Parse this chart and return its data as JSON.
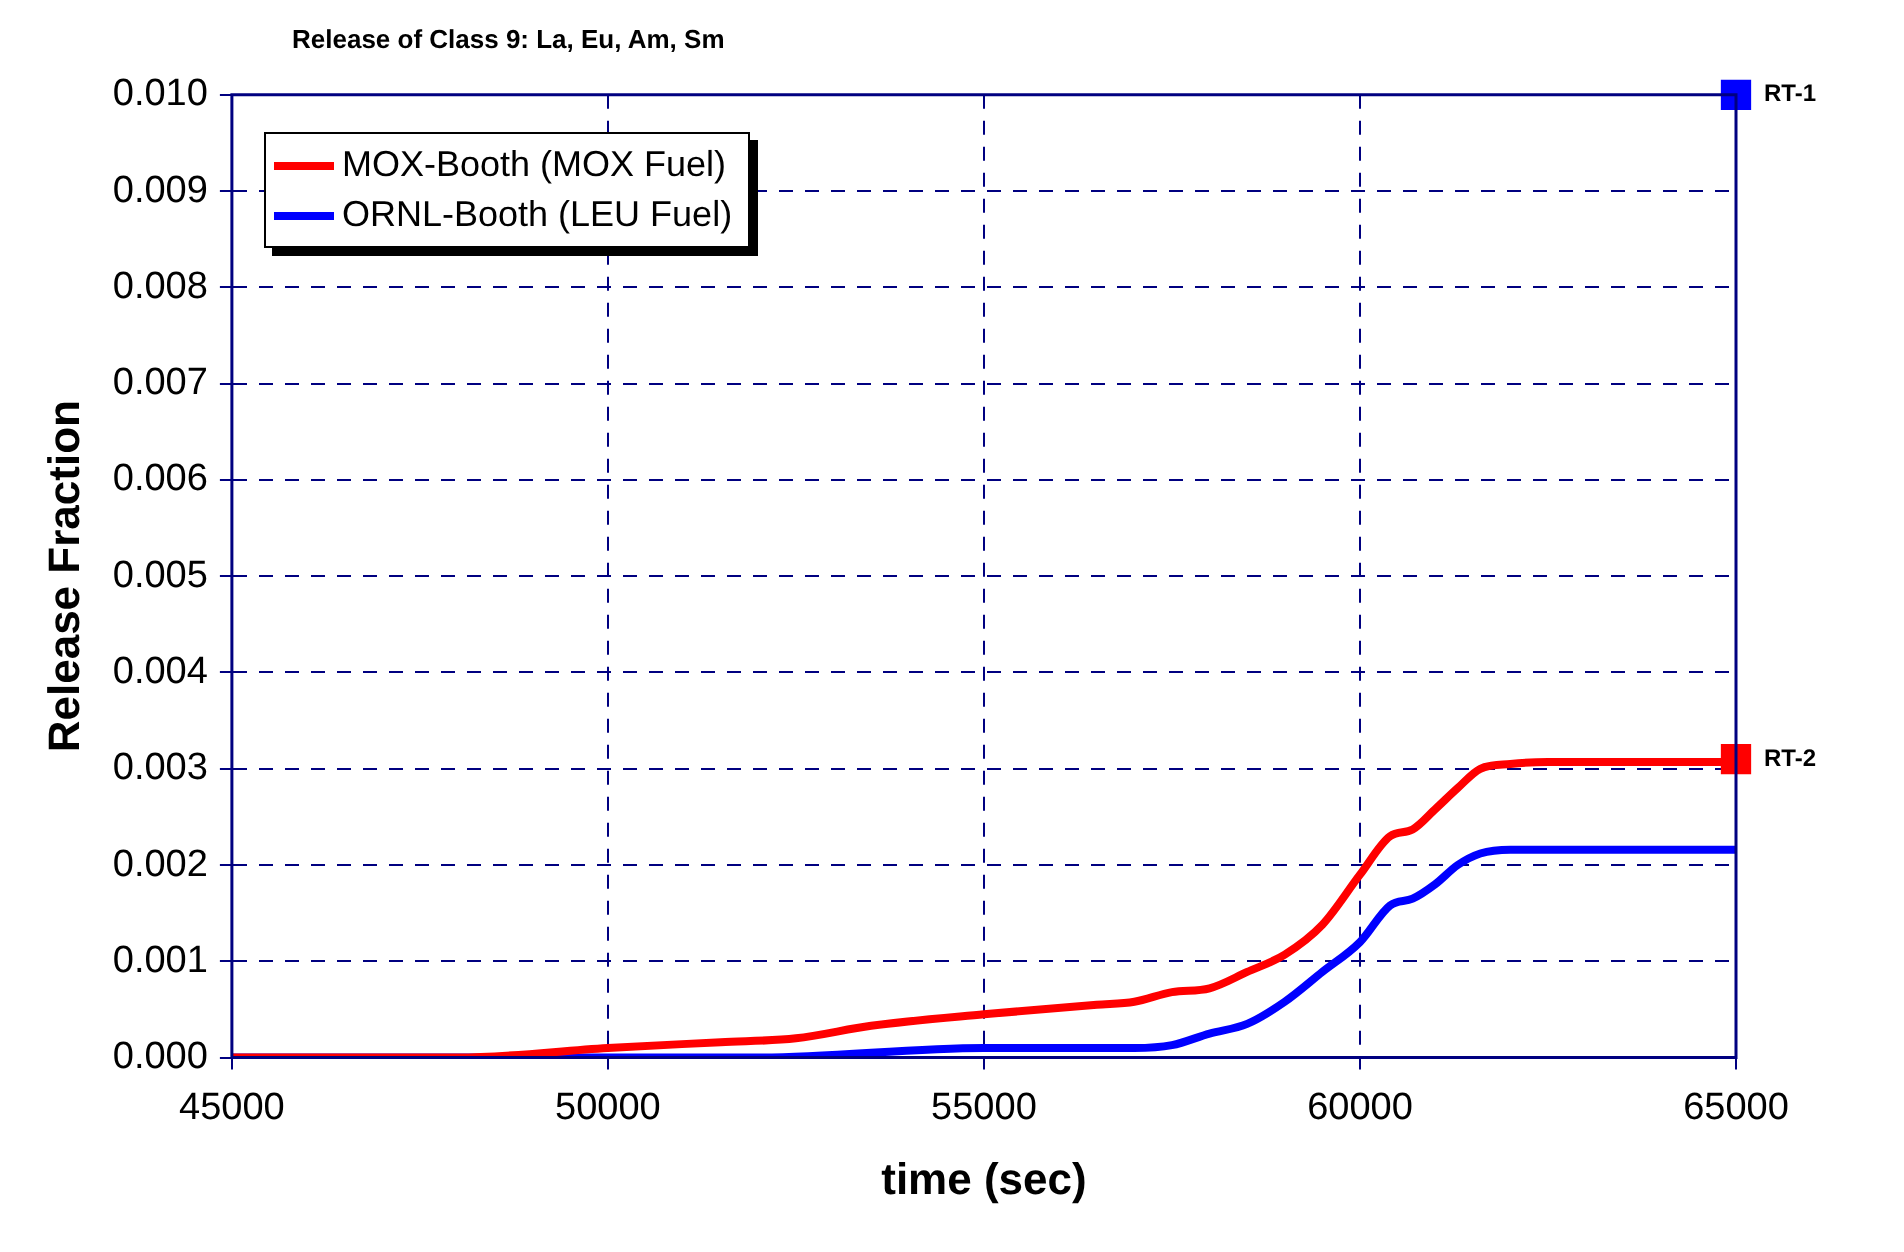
{
  "chart_data": {
    "type": "line",
    "title": "Release of Class 9: La, Eu, Am, Sm",
    "xlabel": "time (sec)",
    "ylabel": "Release Fraction",
    "xlim": [
      45000,
      65000
    ],
    "xticks": [
      45000,
      50000,
      55000,
      60000,
      65000
    ],
    "ylim": [
      0,
      0.01
    ],
    "yticks": [
      {
        "value": 0,
        "label": "0.000"
      },
      {
        "value": 0.001,
        "label": "0.001"
      },
      {
        "value": 0.002,
        "label": "0.002"
      },
      {
        "value": 0.003,
        "label": "0.003"
      },
      {
        "value": 0.004,
        "label": "0.004"
      },
      {
        "value": 0.005,
        "label": "0.005"
      },
      {
        "value": 0.006,
        "label": "0.006"
      },
      {
        "value": 0.007,
        "label": "0.007"
      },
      {
        "value": 0.008,
        "label": "0.008"
      },
      {
        "value": 0.009,
        "label": "0.009"
      },
      {
        "value": 0.01,
        "label": "0.010"
      }
    ],
    "grid": true,
    "legend": "top left",
    "marker": "none",
    "line_style": "solid",
    "series": [
      {
        "name": "MOX-Booth (MOX Fuel)",
        "color": "#ff0000",
        "x": [
          45000,
          48000,
          50000,
          51500,
          52500,
          53500,
          55000,
          56500,
          57000,
          57500,
          58000,
          58500,
          59000,
          59500,
          60000,
          60400,
          60700,
          61000,
          61300,
          61600,
          62000,
          62500,
          65000
        ],
        "values": [
          0,
          0,
          0.0001,
          0.00016,
          0.0002,
          0.00033,
          0.00045,
          0.00055,
          0.00058,
          0.00068,
          0.00072,
          0.00089,
          0.00107,
          0.00138,
          0.0019,
          0.0023,
          0.00237,
          0.00258,
          0.0028,
          0.003,
          0.00305,
          0.00307,
          0.00307
        ]
      },
      {
        "name": "ORNL-Booth (LEU Fuel)",
        "color": "#0000ff",
        "x": [
          45000,
          52000,
          55000,
          57000,
          57500,
          58000,
          58500,
          59000,
          59500,
          60000,
          60400,
          60700,
          61000,
          61300,
          61600,
          62000,
          65000
        ],
        "values": [
          0,
          0,
          0.0001,
          0.0001,
          0.00013,
          0.00025,
          0.00035,
          0.00058,
          0.00089,
          0.0012,
          0.00158,
          0.00165,
          0.0018,
          0.002,
          0.00212,
          0.00216,
          0.00216
        ]
      },
      {
        "name": "RT-1",
        "type": "scatter",
        "marker": "square",
        "color": "#0000ff",
        "x": [
          65000
        ],
        "values": [
          0.01
        ]
      },
      {
        "name": "RT-2",
        "type": "scatter",
        "marker": "square",
        "color": "#ff0000",
        "x": [
          65000
        ],
        "values": [
          0.0031
        ]
      }
    ]
  }
}
